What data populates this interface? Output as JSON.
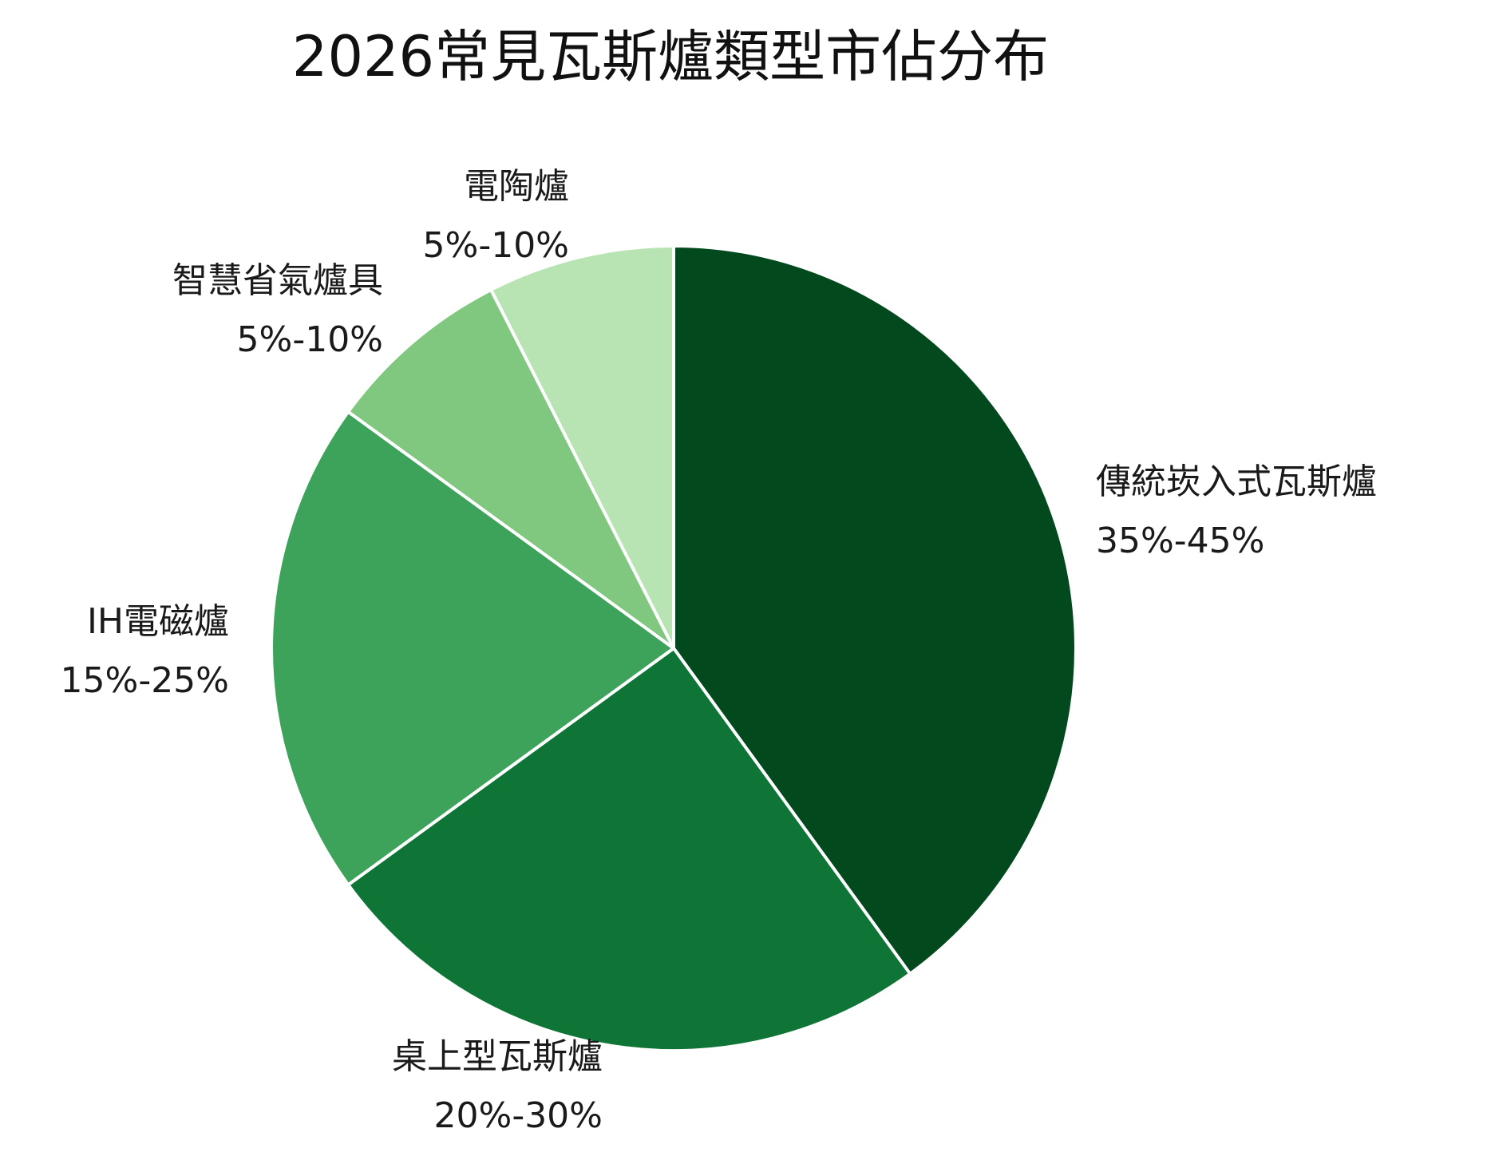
{
  "chart_data": {
    "type": "pie",
    "title": "2026常見瓦斯爐類型市佔分布",
    "slices": [
      {
        "name": "傳統崁入式瓦斯爐",
        "range": "35%-45%",
        "value": 40,
        "color": "#02491e"
      },
      {
        "name": "桌上型瓦斯爐",
        "range": "20%-30%",
        "value": 25,
        "color": "#0f7536"
      },
      {
        "name": "IH電磁爐",
        "range": "15%-25%",
        "value": 20,
        "color": "#3da35b"
      },
      {
        "name": "智慧省氣爐具",
        "range": "5%-10%",
        "value": 7.5,
        "color": "#80c780"
      },
      {
        "name": "電陶爐",
        "range": "5%-10%",
        "value": 7.5,
        "color": "#b8e3b3"
      }
    ],
    "start": "12 o'clock",
    "direction": "clockwise"
  }
}
